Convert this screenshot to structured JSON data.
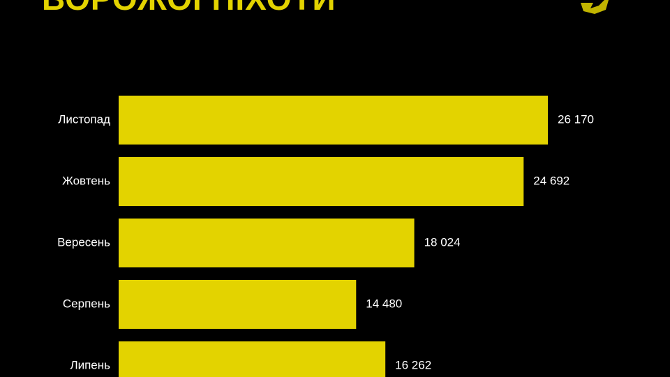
{
  "chart_data": {
    "type": "bar",
    "orientation": "horizontal",
    "title": "ВОРОЖОЇ ПІХОТИ",
    "categories": [
      "Листопад",
      "Жовтень",
      "Вересень",
      "Серпень",
      "Липень"
    ],
    "values": [
      26170,
      24692,
      18024,
      14480,
      16262
    ],
    "value_labels": [
      "26 170",
      "24 692",
      "18 024",
      "14 480",
      "16 262"
    ],
    "color": "#e3d300"
  }
}
